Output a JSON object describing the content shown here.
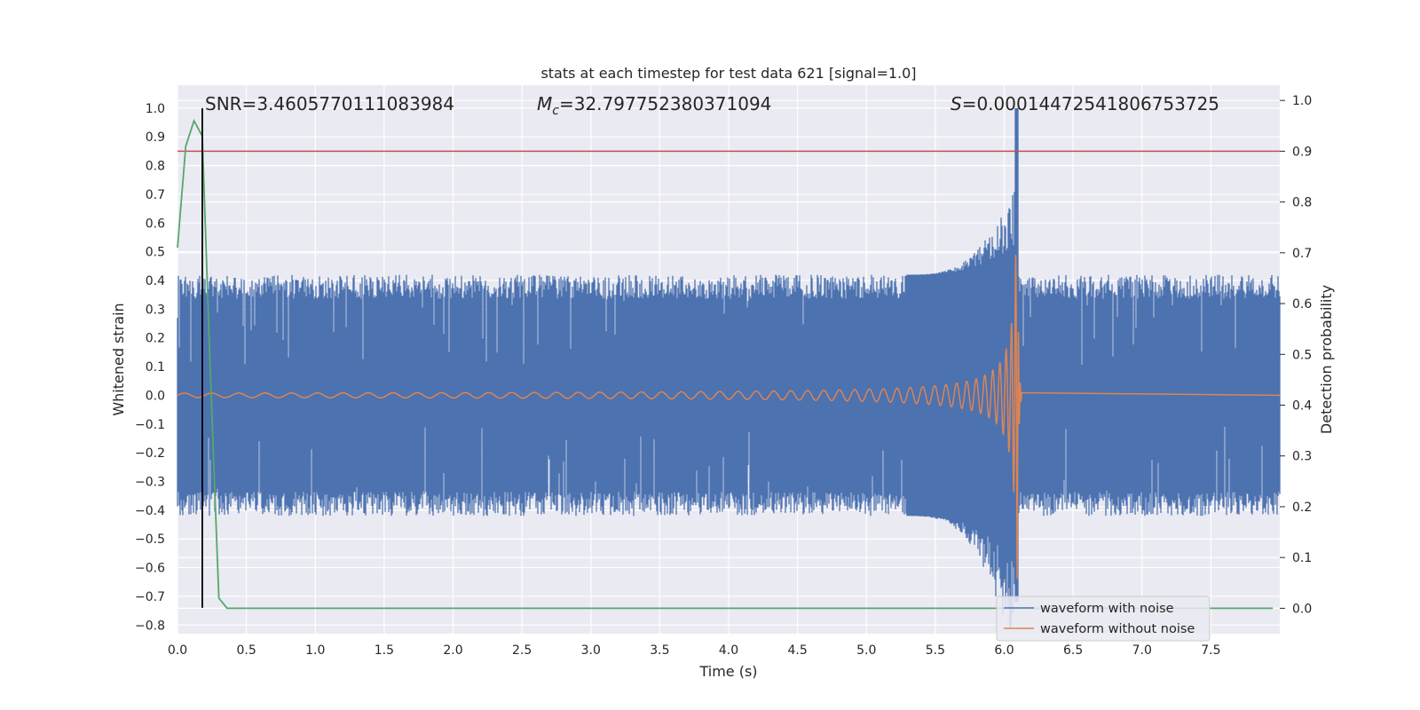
{
  "chart_data": {
    "type": "line",
    "title": "stats at each timestep for test data 621 [signal=1.0]",
    "xlabel": "Time (s)",
    "ylabel": "Whitened strain",
    "y2label": "Detection probability",
    "xlim": [
      0.0,
      8.0
    ],
    "ylim": [
      -0.83,
      1.08
    ],
    "y2lim": [
      -0.05,
      1.03
    ],
    "x_ticks": [
      0.0,
      0.5,
      1.0,
      1.5,
      2.0,
      2.5,
      3.0,
      3.5,
      4.0,
      4.5,
      5.0,
      5.5,
      6.0,
      6.5,
      7.0,
      7.5
    ],
    "x_tick_labels": [
      "0.0",
      "0.5",
      "1.0",
      "1.5",
      "2.0",
      "2.5",
      "3.0",
      "3.5",
      "4.0",
      "4.5",
      "5.0",
      "5.5",
      "6.0",
      "6.5",
      "7.0",
      "7.5"
    ],
    "y_ticks": [
      -0.8,
      -0.7,
      -0.6,
      -0.5,
      -0.4,
      -0.3,
      -0.2,
      -0.1,
      0.0,
      0.1,
      0.2,
      0.3,
      0.4,
      0.5,
      0.6,
      0.7,
      0.8,
      0.9,
      1.0
    ],
    "y_tick_labels": [
      "−0.8",
      "−0.7",
      "−0.6",
      "−0.5",
      "−0.4",
      "−0.3",
      "−0.2",
      "−0.1",
      "0.0",
      "0.1",
      "0.2",
      "0.3",
      "0.4",
      "0.5",
      "0.6",
      "0.7",
      "0.8",
      "0.9",
      "1.0"
    ],
    "y2_ticks": [
      0.0,
      0.1,
      0.2,
      0.3,
      0.4,
      0.5,
      0.6,
      0.7,
      0.8,
      0.9,
      1.0
    ],
    "y2_tick_labels": [
      "0.0",
      "0.1",
      "0.2",
      "0.3",
      "0.4",
      "0.5",
      "0.6",
      "0.7",
      "0.8",
      "0.9",
      "1.0"
    ],
    "grid": true,
    "legend_position": "lower-right",
    "series": [
      {
        "name": "waveform with noise",
        "color": "#4c72b0",
        "noise_band": [
          -0.42,
          0.42
        ],
        "peak_time": 6.09,
        "peak_max": 1.0,
        "peak_min": -0.72
      },
      {
        "name": "waveform without noise",
        "color": "#dd8452",
        "chirp_start": 0.0,
        "merger_time": 6.09,
        "end_time": 6.13,
        "peak_amplitude": 0.64
      },
      {
        "color": "#55a868",
        "axis": "right",
        "x": [
          0.0,
          0.06,
          0.12,
          0.18,
          0.24,
          0.3,
          0.36,
          0.42,
          7.95
        ],
        "y": [
          0.71,
          0.91,
          0.96,
          0.93,
          0.45,
          0.02,
          0.0,
          0.0,
          0.0
        ]
      }
    ],
    "threshold": {
      "axis": "right",
      "value": 0.9,
      "color": "#c44e52"
    },
    "marker_line": {
      "x": 0.18,
      "y_range": [
        -0.74,
        1.0
      ],
      "color": "#000000"
    },
    "annotations": [
      {
        "prefix": "SNR=",
        "value": "3.4605770111083984"
      },
      {
        "symbol": "M",
        "subscript": "c",
        "value": "=32.797752380371094"
      },
      {
        "symbol": "S",
        "value": "=0.00014472541806753725"
      }
    ]
  }
}
